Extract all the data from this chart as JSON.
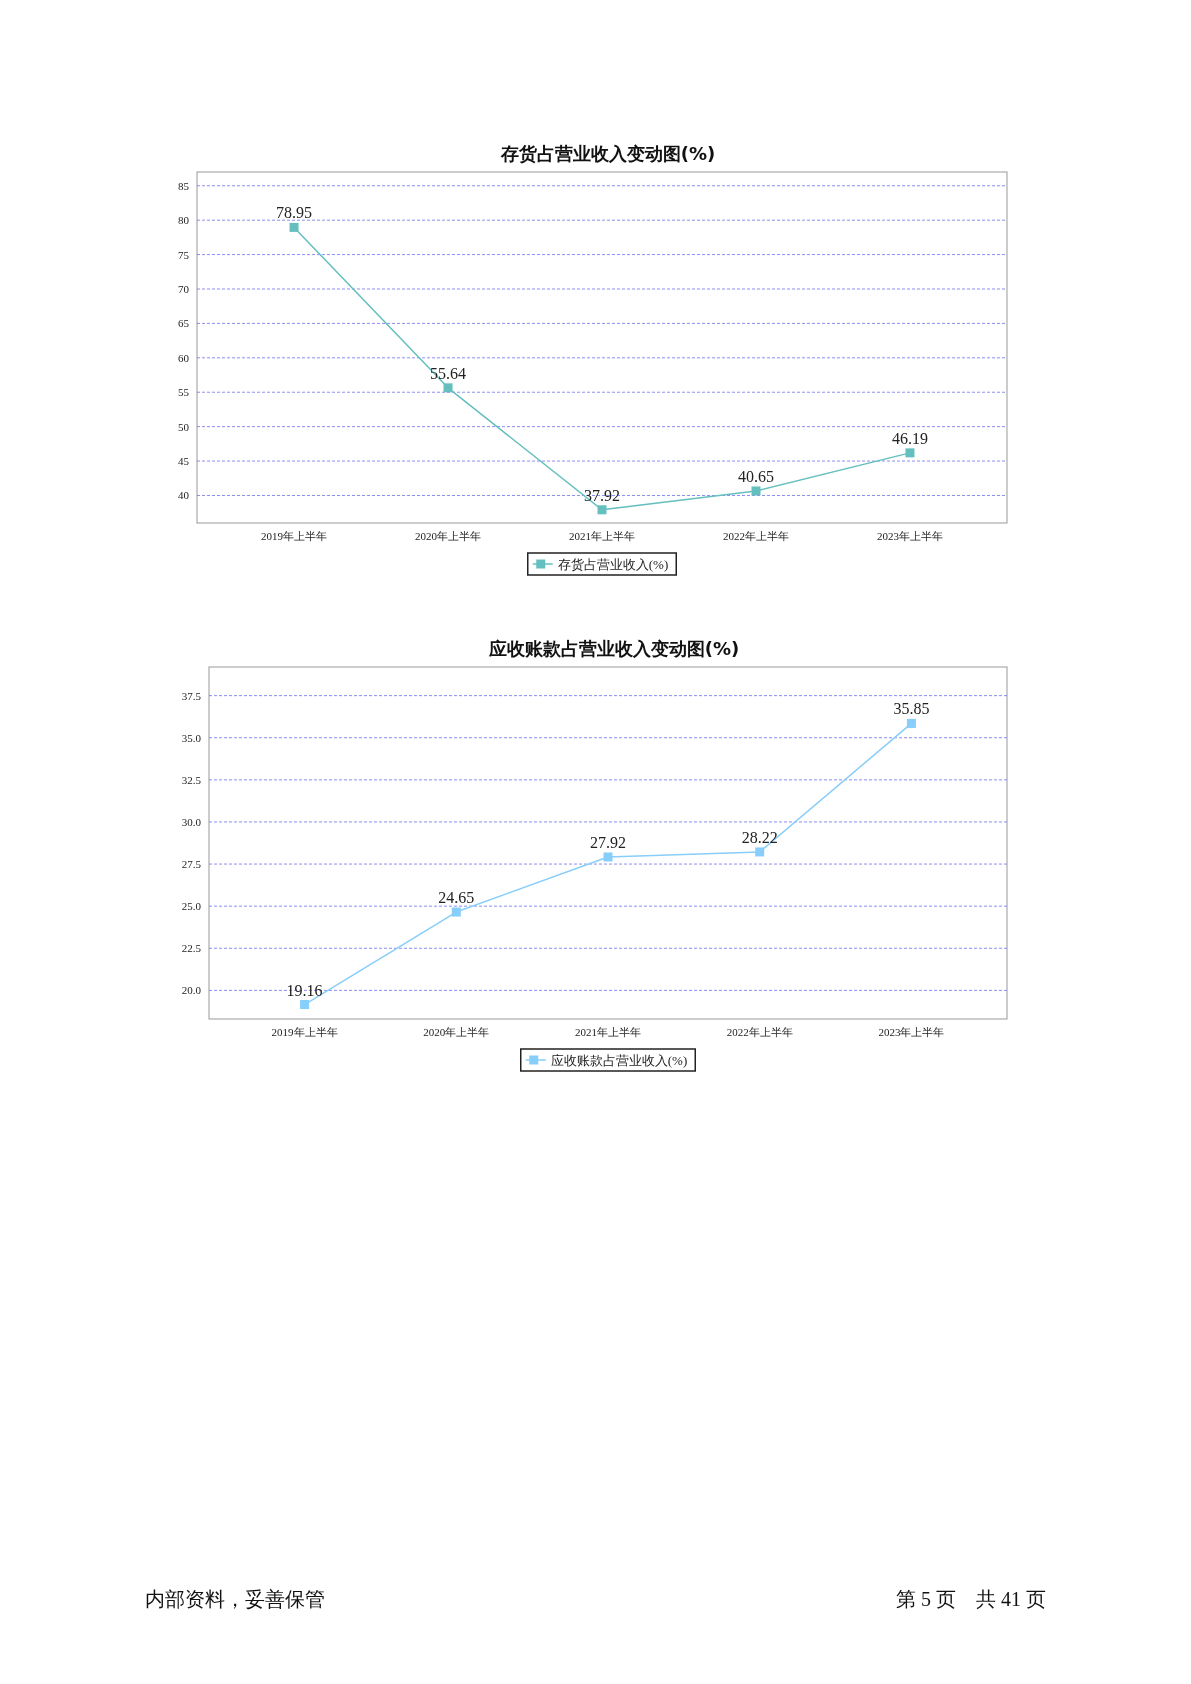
{
  "chart_data": [
    {
      "type": "line",
      "title": "存货占营业收入变动图(%)",
      "categories": [
        "2019年上半年",
        "2020年上半年",
        "2021年上半年",
        "2022年上半年",
        "2023年上半年"
      ],
      "series": [
        {
          "name": "存货占营业收入(%)",
          "color": "#66bfbf",
          "values": [
            78.95,
            55.64,
            37.92,
            40.65,
            46.19
          ]
        }
      ],
      "ylim": [
        36,
        87
      ],
      "yticks": [
        40,
        45,
        50,
        55,
        60,
        65,
        70,
        75,
        80,
        85
      ],
      "grid": "y",
      "legend": "bottom",
      "marker": "square",
      "data_labels": true
    },
    {
      "type": "line",
      "title": "应收账款占营业收入变动图(%)",
      "categories": [
        "2019年上半年",
        "2020年上半年",
        "2021年上半年",
        "2022年上半年",
        "2023年上半年"
      ],
      "series": [
        {
          "name": "应收账款占营业收入(%)",
          "color": "#87cefa",
          "values": [
            19.16,
            24.65,
            27.92,
            28.22,
            35.85
          ]
        }
      ],
      "ylim": [
        18.3,
        39.2
      ],
      "yticks": [
        {
          "value": 20,
          "label": "20.0"
        },
        {
          "value": 22.5,
          "label": "22.5"
        },
        {
          "value": 25,
          "label": "25.0"
        },
        {
          "value": 27.5,
          "label": "27.5"
        },
        {
          "value": 30,
          "label": "30.0"
        },
        {
          "value": 32.5,
          "label": "32.5"
        },
        {
          "value": 35,
          "label": "35.0"
        },
        {
          "value": 37.5,
          "label": "37.5"
        }
      ],
      "grid": "y",
      "legend": "bottom",
      "marker": "square",
      "data_labels": true,
      "annotations": [
        "内部资料，妥善保管",
        "第 5 页　共 41 页"
      ]
    }
  ]
}
